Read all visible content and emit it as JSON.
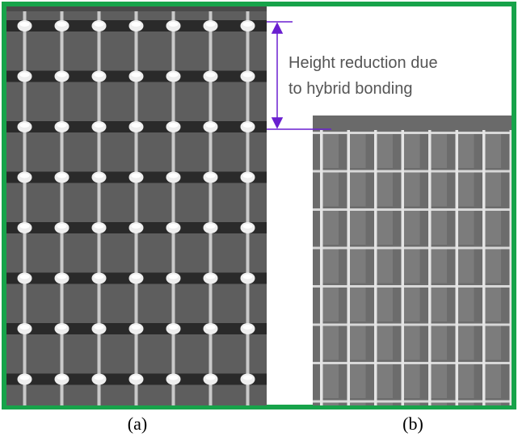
{
  "annotation": {
    "lines": [
      "Height reduction due",
      "to hybrid bonding"
    ]
  },
  "panels": [
    {
      "label": "(a)"
    },
    {
      "label": "(b)"
    }
  ]
}
